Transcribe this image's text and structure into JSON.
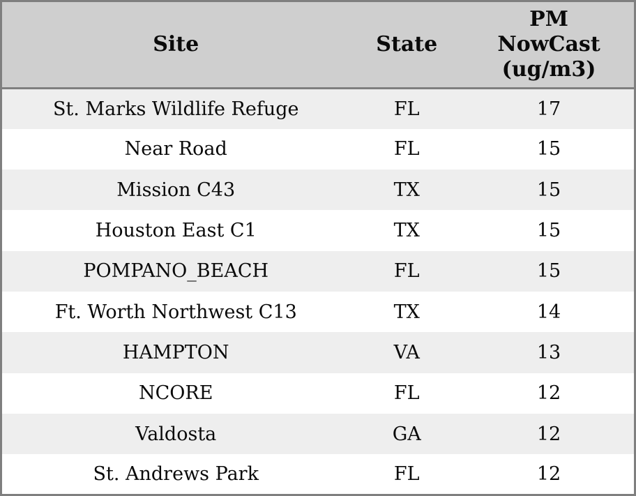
{
  "colors": {
    "header_bg": "#cfcfcf",
    "row_stripe": "#eeeeee",
    "row_plain": "#ffffff",
    "border": "#7f7f7f",
    "text": "#0a0a0a"
  },
  "table": {
    "headers": {
      "site": "Site",
      "state": "State",
      "pm": "PM NowCast (ug/m3)"
    },
    "rows": [
      {
        "site": "St. Marks Wildlife Refuge",
        "state": "FL",
        "pm": "17"
      },
      {
        "site": "Near Road",
        "state": "FL",
        "pm": "15"
      },
      {
        "site": "Mission C43",
        "state": "TX",
        "pm": "15"
      },
      {
        "site": "Houston East C1",
        "state": "TX",
        "pm": "15"
      },
      {
        "site": "POMPANO_BEACH",
        "state": "FL",
        "pm": "15"
      },
      {
        "site": "Ft. Worth Northwest C13",
        "state": "TX",
        "pm": "14"
      },
      {
        "site": "HAMPTON",
        "state": "VA",
        "pm": "13"
      },
      {
        "site": "NCORE",
        "state": "FL",
        "pm": "12"
      },
      {
        "site": "Valdosta",
        "state": "GA",
        "pm": "12"
      },
      {
        "site": "St. Andrews Park",
        "state": "FL",
        "pm": "12"
      }
    ]
  },
  "chart_data": {
    "type": "table",
    "title": "",
    "columns": [
      "Site",
      "State",
      "PM NowCast (ug/m3)"
    ],
    "rows": [
      [
        "St. Marks Wildlife Refuge",
        "FL",
        17
      ],
      [
        "Near Road",
        "FL",
        15
      ],
      [
        "Mission C43",
        "TX",
        15
      ],
      [
        "Houston East C1",
        "TX",
        15
      ],
      [
        "POMPANO_BEACH",
        "FL",
        15
      ],
      [
        "Ft. Worth Northwest C13",
        "TX",
        14
      ],
      [
        "HAMPTON",
        "VA",
        13
      ],
      [
        "NCORE",
        "FL",
        12
      ],
      [
        "Valdosta",
        "GA",
        12
      ],
      [
        "St. Andrews Park",
        "FL",
        12
      ]
    ]
  }
}
